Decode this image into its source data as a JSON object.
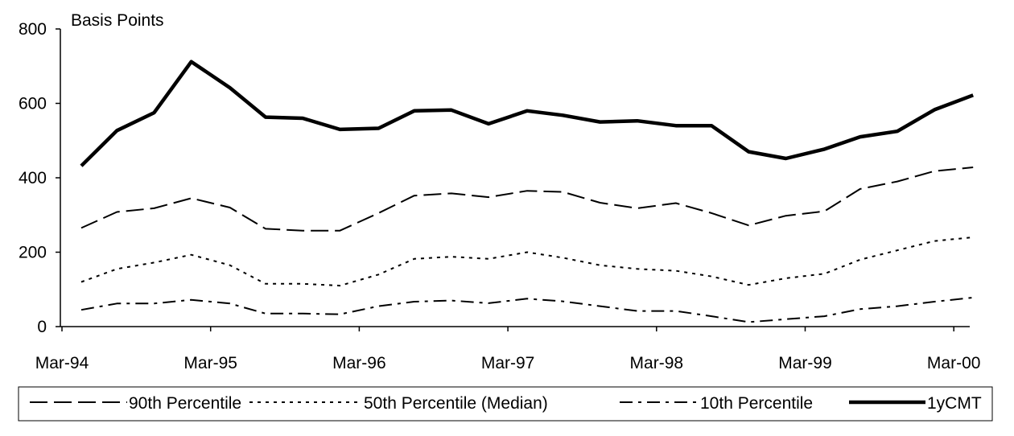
{
  "chart_data": {
    "type": "line",
    "ylabel": "Basis Points",
    "ylim": [
      0,
      800
    ],
    "yticks": [
      0,
      200,
      400,
      600,
      800
    ],
    "x_tick_labels": [
      "Mar-94",
      "Mar-95",
      "Mar-96",
      "Mar-97",
      "Mar-98",
      "Mar-99",
      "Mar-00"
    ],
    "x_tick_positions": [
      0,
      1,
      2,
      3,
      4,
      5,
      6
    ],
    "x": [
      0.13,
      0.37,
      0.62,
      0.87,
      1.13,
      1.37,
      1.62,
      1.87,
      2.13,
      2.37,
      2.62,
      2.87,
      3.13,
      3.37,
      3.62,
      3.87,
      4.13,
      4.37,
      4.62,
      4.87,
      5.13,
      5.37,
      5.62,
      5.87,
      6.13
    ],
    "series": [
      {
        "name": "90th Percentile",
        "style": "long-dash",
        "color": "#000000",
        "values": [
          265,
          308,
          318,
          345,
          320,
          263,
          258,
          258,
          305,
          352,
          358,
          348,
          365,
          362,
          333,
          318,
          332,
          305,
          272,
          298,
          310,
          370,
          390,
          418,
          428
        ]
      },
      {
        "name": "50th Percentile (Median)",
        "style": "dotted",
        "color": "#000000",
        "values": [
          120,
          155,
          172,
          193,
          165,
          115,
          115,
          110,
          140,
          182,
          188,
          182,
          200,
          185,
          165,
          155,
          150,
          135,
          112,
          130,
          142,
          180,
          205,
          230,
          240
        ]
      },
      {
        "name": "10th Percentile",
        "style": "dash-dot",
        "color": "#000000",
        "values": [
          45,
          62,
          62,
          72,
          62,
          35,
          35,
          33,
          55,
          67,
          70,
          63,
          75,
          68,
          55,
          42,
          42,
          28,
          12,
          20,
          28,
          47,
          55,
          67,
          78
        ]
      },
      {
        "name": "1yCMT",
        "style": "solid-thick",
        "color": "#000000",
        "values": [
          432,
          527,
          575,
          712,
          642,
          563,
          560,
          530,
          533,
          580,
          582,
          545,
          580,
          568,
          550,
          553,
          540,
          540,
          470,
          452,
          477,
          510,
          525,
          583,
          622
        ]
      }
    ],
    "legend_position": "bottom",
    "grid": false
  }
}
